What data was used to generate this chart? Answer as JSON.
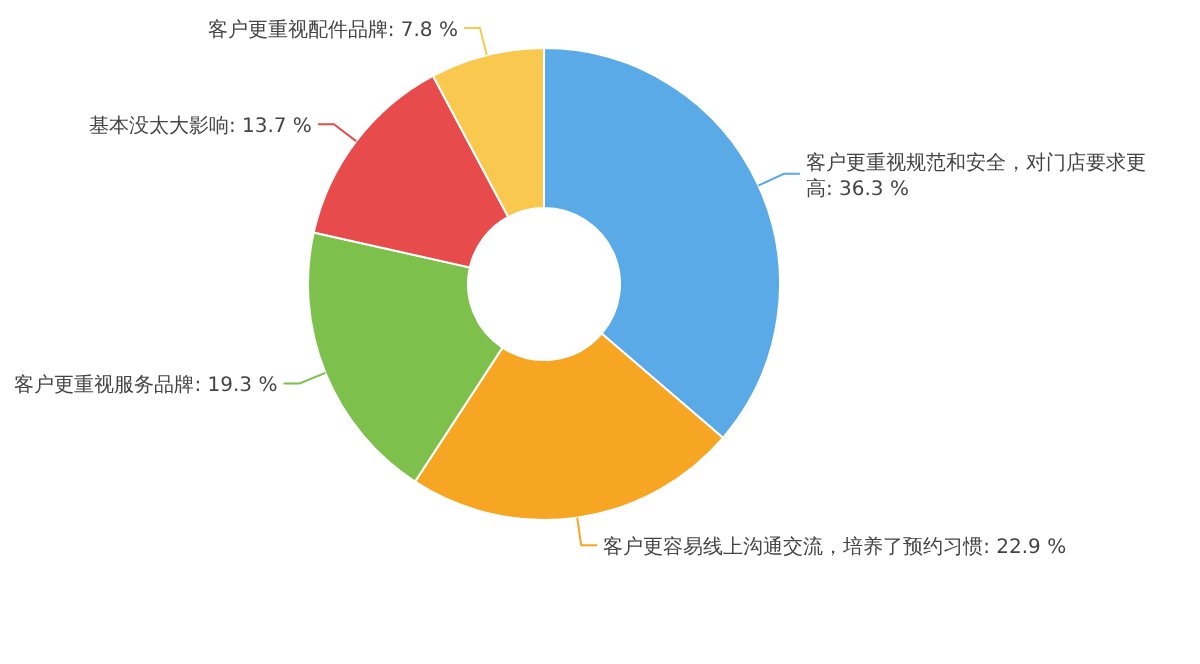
{
  "chart_data": {
    "type": "donut",
    "categories": [
      "客户更重视规范和安全，对门店要求更高",
      "客户更容易线上沟通交流，培养了预约习惯",
      "客户更重视服务品牌",
      "基本没太大影响",
      "客户更重视配件品牌"
    ],
    "values": [
      36.3,
      22.9,
      19.3,
      13.7,
      7.8
    ],
    "value_labels": [
      "36.3 %",
      "22.9 %",
      "19.3 %",
      "13.7 %",
      "7.8 %"
    ],
    "colors": [
      "#5aaae8",
      "#f6a623",
      "#7dc04c",
      "#e84b4b",
      "#f9c84f"
    ]
  }
}
